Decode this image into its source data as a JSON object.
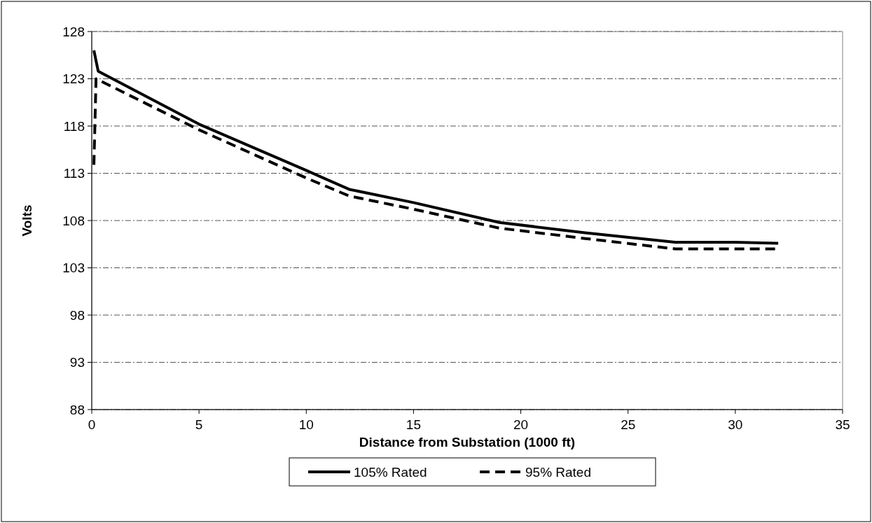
{
  "chart_data": {
    "type": "line",
    "xlabel": "Distance from Substation (1000 ft)",
    "ylabel": "Volts",
    "xlim": [
      0,
      35
    ],
    "xticks": [
      0,
      5,
      10,
      15,
      20,
      25,
      30,
      35
    ],
    "ylim": [
      88,
      128
    ],
    "yticks": [
      88,
      93,
      98,
      103,
      108,
      113,
      118,
      123,
      128
    ],
    "grid": "y",
    "legend": "bottom",
    "series": [
      {
        "name": "105% Rated",
        "color": "#000000",
        "line_style": "solid",
        "x": [
          0.1,
          0.3,
          5,
          10,
          12,
          15,
          19,
          23,
          27.2,
          30,
          32
        ],
        "values": [
          126.0,
          123.8,
          118.2,
          113.3,
          111.3,
          109.9,
          107.8,
          106.7,
          105.7,
          105.7,
          105.6
        ]
      },
      {
        "name": "95% Rated",
        "color": "#000000",
        "line_style": "dashed",
        "x": [
          0.1,
          0.2,
          5,
          10,
          12,
          15,
          19,
          23,
          27.2,
          30,
          32
        ],
        "values": [
          113.9,
          123.0,
          117.6,
          112.5,
          110.6,
          109.2,
          107.2,
          106.1,
          105.0,
          105.0,
          105.0
        ]
      }
    ]
  }
}
